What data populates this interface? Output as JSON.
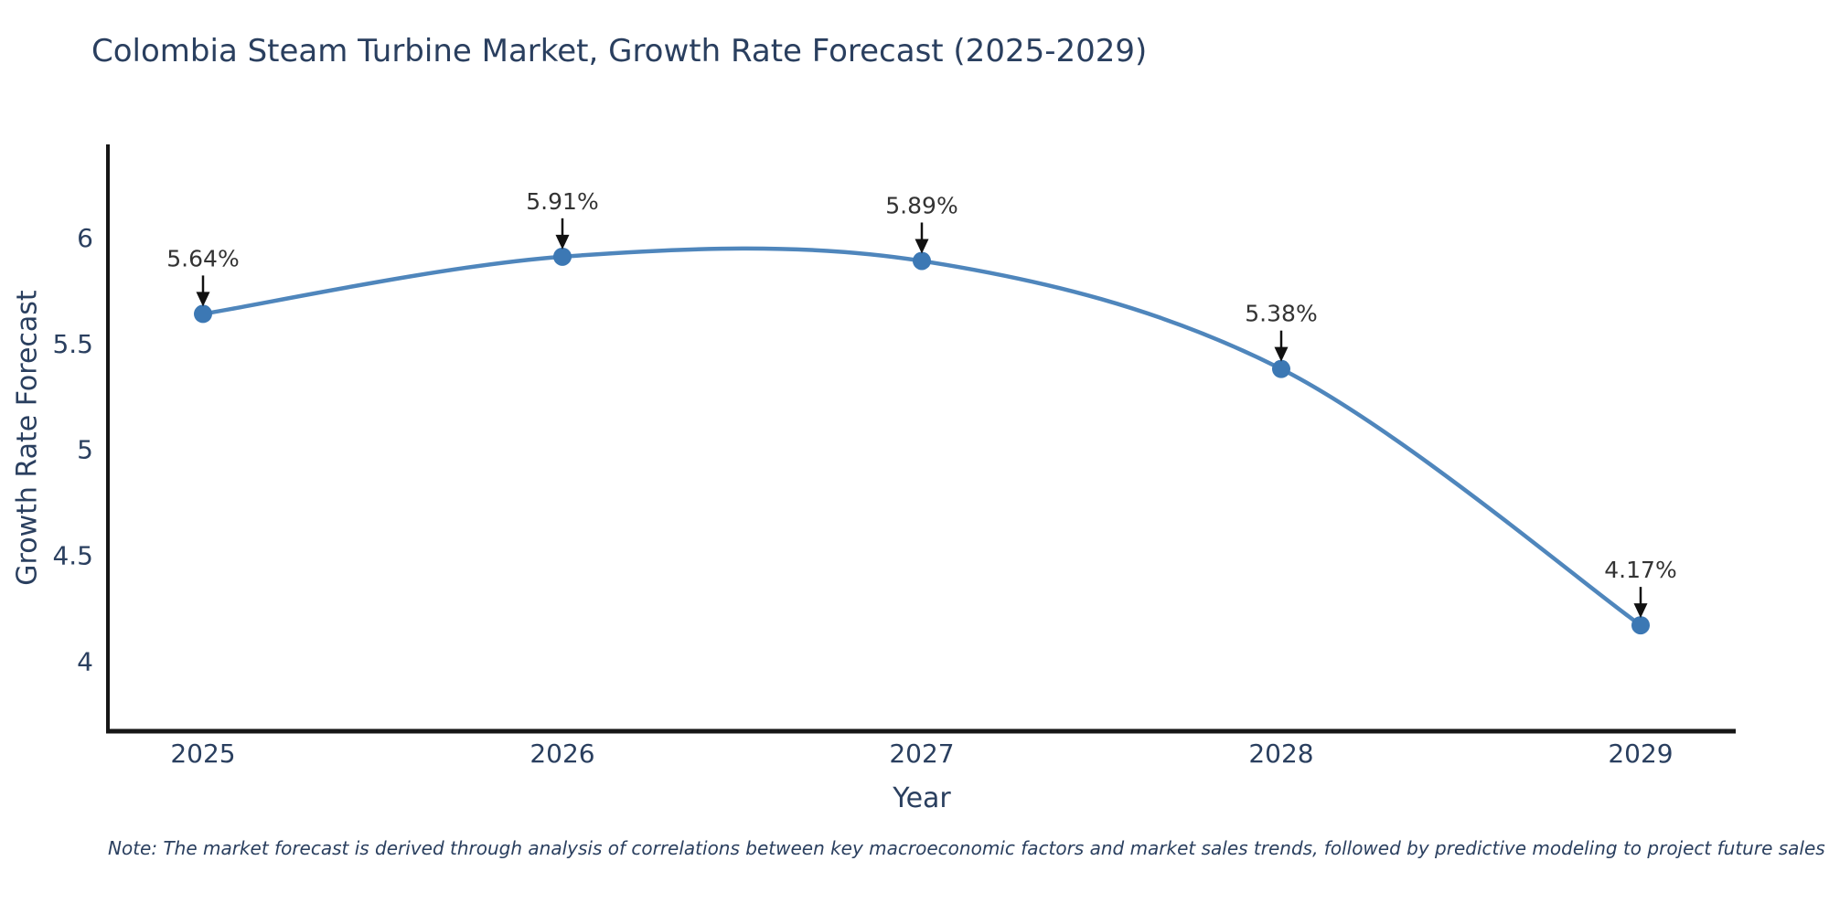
{
  "page": {
    "title": "Colombia Steam Turbine Market, Growth Rate Forecast (2025-2029)",
    "note": "Note: The market forecast is derived through analysis of correlations between key macroeconomic factors and market sales trends, followed by predictive modeling to project future sales"
  },
  "chart_data": {
    "type": "line",
    "title": "Colombia Steam Turbine Market, Growth Rate Forecast (2025-2029)",
    "xlabel": "Year",
    "ylabel": "Growth Rate Forecast",
    "categories": [
      "2025",
      "2026",
      "2027",
      "2028",
      "2029"
    ],
    "values": [
      5.64,
      5.91,
      5.89,
      5.38,
      4.17
    ],
    "point_labels": [
      "5.64%",
      "5.91%",
      "5.89%",
      "5.38%",
      "4.17%"
    ],
    "yticks": [
      4,
      4.5,
      5,
      5.5,
      6
    ],
    "ylim": [
      3.67,
      6.44
    ],
    "grid": false,
    "legend": "none",
    "line_shape": "spline",
    "colors": {
      "line": "#4f86bc",
      "marker": "#3c78b4",
      "axis": "#161616",
      "tick_text": "#2a3f5f",
      "annotation_text": "#333333",
      "arrow": "#111111"
    }
  }
}
